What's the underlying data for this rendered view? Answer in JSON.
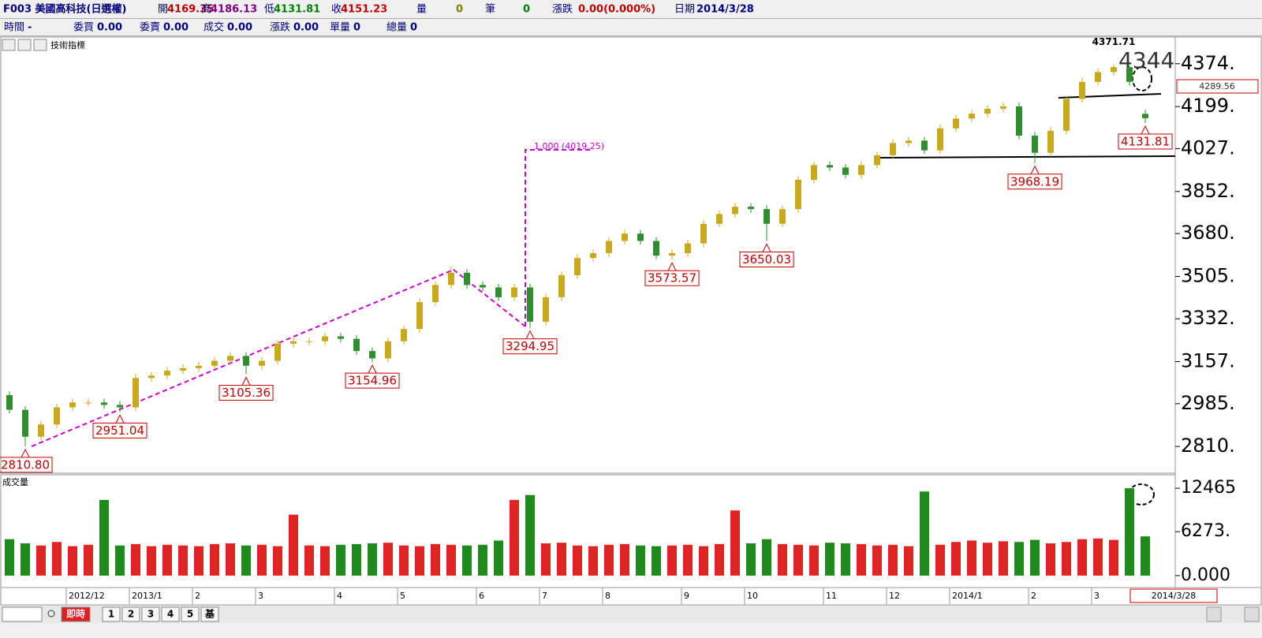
{
  "header": {
    "symbol": "F003 美國高科技(日選權)",
    "quote": [
      {
        "label": "開",
        "value": "4169.35"
      },
      {
        "label": "高",
        "value": "4186.13"
      },
      {
        "label": "低",
        "value": "4131.81"
      },
      {
        "label": "收",
        "value": "4151.23"
      },
      {
        "label": "量",
        "value": "0"
      },
      {
        "label": "筆",
        "value": "0"
      },
      {
        "label": "漲跌",
        "value": "0.00(0.000%)"
      },
      {
        "label": "日期",
        "value": "2014/3/28"
      }
    ],
    "tick": [
      {
        "label": "時間",
        "value": "-"
      },
      {
        "label": "委買",
        "value": "0.00"
      },
      {
        "label": "委賣",
        "value": "0.00"
      },
      {
        "label": "成交",
        "value": "0.00"
      },
      {
        "label": "漲跌",
        "value": "0.00"
      },
      {
        "label": "單量",
        "value": "0"
      },
      {
        "label": "總量",
        "value": "0"
      }
    ]
  },
  "chart_data": {
    "type": "candlestick",
    "indicator_label": "技術指標",
    "categories": [
      null,
      null,
      null,
      null,
      "2012/12",
      null,
      null,
      null,
      "2013/1",
      null,
      null,
      null,
      "2",
      null,
      null,
      null,
      "3",
      null,
      null,
      null,
      null,
      "4",
      null,
      null,
      null,
      "5",
      null,
      null,
      null,
      null,
      "6",
      null,
      null,
      null,
      "7",
      null,
      null,
      null,
      "8",
      null,
      null,
      null,
      null,
      "9",
      null,
      null,
      null,
      "10",
      null,
      null,
      null,
      null,
      "11",
      null,
      null,
      null,
      "12",
      null,
      null,
      null,
      "2014/1",
      null,
      null,
      null,
      null,
      "2",
      null,
      null,
      null,
      "3",
      null,
      null,
      null
    ],
    "open": [
      3020,
      2960,
      2850,
      2900,
      2970,
      2990,
      2990,
      2980,
      2970,
      3090,
      3100,
      3120,
      3130,
      3140,
      3160,
      3180,
      3140,
      3160,
      3230,
      3240,
      3240,
      3260,
      3250,
      3200,
      3170,
      3240,
      3290,
      3400,
      3470,
      3520,
      3470,
      3460,
      3420,
      3460,
      3320,
      3420,
      3510,
      3580,
      3600,
      3650,
      3680,
      3650,
      3590,
      3600,
      3640,
      3720,
      3760,
      3790,
      3780,
      3720,
      3780,
      3900,
      3960,
      3950,
      3920,
      3960,
      4000,
      4050,
      4060,
      4020,
      4110,
      4150,
      4170,
      4190,
      4200,
      4080,
      4010,
      4100,
      4230,
      4300,
      4340,
      4360,
      4169.35
    ],
    "high": [
      3035,
      2975,
      2915,
      2985,
      3005,
      3005,
      3005,
      2995,
      3105,
      3115,
      3135,
      3145,
      3155,
      3175,
      3195,
      3195,
      3175,
      3245,
      3255,
      3255,
      3275,
      3275,
      3265,
      3215,
      3255,
      3305,
      3415,
      3485,
      3545,
      3535,
      3485,
      3475,
      3475,
      3475,
      3435,
      3525,
      3595,
      3615,
      3665,
      3695,
      3695,
      3665,
      3615,
      3655,
      3735,
      3775,
      3805,
      3805,
      3795,
      3795,
      3915,
      3975,
      3975,
      3965,
      3975,
      4015,
      4065,
      4075,
      4075,
      4125,
      4165,
      4185,
      4205,
      4215,
      4215,
      4095,
      4115,
      4245,
      4315,
      4355,
      4371.71,
      4365,
      4186.13
    ],
    "low": [
      2945,
      2810.8,
      2835,
      2885,
      2955,
      2975,
      2965,
      2951.04,
      2955,
      3075,
      3085,
      3105,
      3115,
      3125,
      3145,
      3105.36,
      3125,
      3145,
      3215,
      3225,
      3225,
      3235,
      3185,
      3154.96,
      3155,
      3225,
      3275,
      3385,
      3455,
      3455,
      3445,
      3405,
      3405,
      3294.95,
      3305,
      3405,
      3495,
      3565,
      3585,
      3635,
      3635,
      3575,
      3573.57,
      3585,
      3625,
      3705,
      3745,
      3765,
      3650.03,
      3705,
      3765,
      3885,
      3935,
      3905,
      3905,
      3945,
      3985,
      4035,
      4005,
      4005,
      4095,
      4135,
      4155,
      4175,
      4065,
      3968.19,
      3995,
      4085,
      4215,
      4285,
      4325,
      4285,
      4131.81
    ],
    "close": [
      2960,
      2850,
      2900,
      2970,
      2990,
      2990,
      2980,
      2970,
      3090,
      3100,
      3120,
      3130,
      3140,
      3160,
      3180,
      3140,
      3160,
      3230,
      3240,
      3240,
      3260,
      3250,
      3200,
      3170,
      3240,
      3290,
      3400,
      3470,
      3520,
      3470,
      3460,
      3420,
      3460,
      3320,
      3420,
      3510,
      3580,
      3600,
      3650,
      3680,
      3650,
      3590,
      3600,
      3640,
      3720,
      3760,
      3790,
      3780,
      3720,
      3780,
      3900,
      3960,
      3950,
      3920,
      3960,
      4000,
      4050,
      4060,
      4020,
      4110,
      4150,
      4170,
      4190,
      4200,
      4080,
      4010,
      4100,
      4230,
      4300,
      4340,
      4360,
      4300,
      4151.23
    ],
    "low_labels": [
      null,
      "2810.80",
      null,
      null,
      null,
      null,
      null,
      "2951.04",
      null,
      null,
      null,
      null,
      null,
      null,
      null,
      "3105.36",
      null,
      null,
      null,
      null,
      null,
      null,
      null,
      "3154.96",
      null,
      null,
      null,
      null,
      null,
      null,
      null,
      null,
      null,
      "3294.95",
      null,
      null,
      null,
      null,
      null,
      null,
      null,
      null,
      "3573.57",
      null,
      null,
      null,
      null,
      null,
      "3650.03",
      null,
      null,
      null,
      null,
      null,
      null,
      null,
      null,
      null,
      null,
      null,
      null,
      null,
      null,
      null,
      null,
      "3968.19",
      null,
      null,
      null,
      null,
      null,
      null,
      "4131.81"
    ],
    "high_labels": [
      null,
      null,
      null,
      null,
      null,
      null,
      null,
      null,
      null,
      null,
      null,
      null,
      null,
      null,
      null,
      null,
      null,
      null,
      null,
      null,
      null,
      null,
      null,
      null,
      null,
      null,
      null,
      null,
      null,
      null,
      null,
      null,
      null,
      null,
      null,
      null,
      null,
      null,
      null,
      null,
      null,
      null,
      null,
      null,
      null,
      null,
      null,
      null,
      null,
      null,
      null,
      null,
      null,
      null,
      null,
      null,
      null,
      null,
      null,
      null,
      null,
      null,
      null,
      null,
      null,
      null,
      null,
      null,
      null,
      null,
      "4371.71",
      null,
      null
    ],
    "up_color": "#c9a91c",
    "down_color": "#2f8f2f",
    "ylim": [
      2701,
      4483
    ],
    "yticks": [
      {
        "value": 2810,
        "label": "2810."
      },
      {
        "value": 2985,
        "label": "2985."
      },
      {
        "value": 3157,
        "label": "3157."
      },
      {
        "value": 3332,
        "label": "3332."
      },
      {
        "value": 3505,
        "label": "3505."
      },
      {
        "value": 3680,
        "label": "3680."
      },
      {
        "value": 3852,
        "label": "3852."
      },
      {
        "value": 4027,
        "label": "4027."
      },
      {
        "value": 4199,
        "label": "4199."
      },
      {
        "value": 4374,
        "label": "4374."
      }
    ],
    "annotations": {
      "fib": "1.000 (4019.25)",
      "target": "4344",
      "price_box": "4289.56",
      "date_box": "2014/3/28"
    },
    "volume": {
      "label": "成交量",
      "values": [
        5200,
        4600,
        4300,
        4800,
        4200,
        4400,
        10800,
        4300,
        4500,
        4200,
        4400,
        4300,
        4200,
        4500,
        4600,
        4300,
        4400,
        4200,
        8700,
        4300,
        4200,
        4400,
        4500,
        4600,
        4700,
        4300,
        4200,
        4500,
        4400,
        4300,
        4400,
        5000,
        10800,
        11500,
        4600,
        4700,
        4300,
        4200,
        4400,
        4500,
        4300,
        4200,
        4300,
        4400,
        4200,
        4500,
        9300,
        4600,
        5200,
        4500,
        4400,
        4300,
        4700,
        4600,
        4500,
        4300,
        4400,
        4200,
        12000,
        4400,
        4800,
        5000,
        4700,
        4900,
        4800,
        5100,
        4600,
        4800,
        5200,
        5300,
        5100,
        12465,
        5600
      ],
      "up_color": "#e02424",
      "down_color": "#1e8a1e",
      "ylim": [
        -1700,
        14390
      ],
      "yticks": [
        {
          "value": 0,
          "label": "0.000"
        },
        {
          "value": 6273,
          "label": "6273."
        },
        12465
      ]
    }
  },
  "footer": {
    "tabs": [
      "即時",
      "1",
      "2",
      "3",
      "4",
      "5",
      "基"
    ]
  }
}
